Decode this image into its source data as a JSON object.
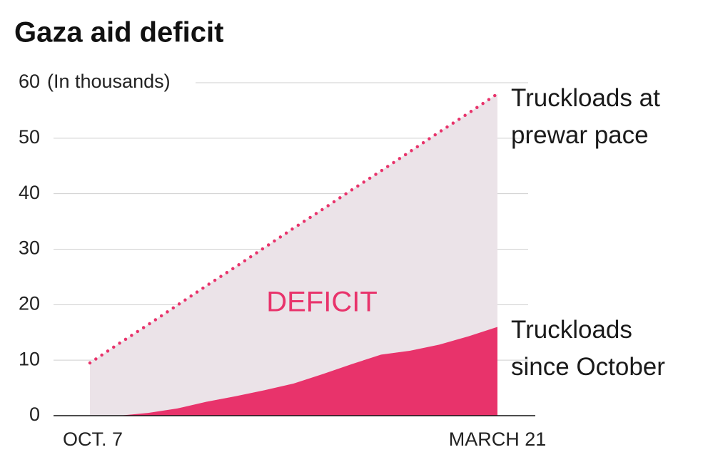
{
  "chart_data": {
    "type": "area",
    "title": "Gaza aid deficit",
    "y_unit": "(In thousands)",
    "annotation": "DEFICIT",
    "categories": [
      "OCT. 7",
      null,
      null,
      null,
      null,
      null,
      null,
      null,
      null,
      null,
      null,
      null,
      null,
      null,
      "MARCH 21"
    ],
    "series": [
      {
        "name": "Truckloads at prewar pace",
        "color": "#e8336b",
        "style": "dotted",
        "values": [
          9.5,
          13.0,
          16.4,
          19.9,
          23.4,
          26.8,
          30.3,
          33.8,
          37.2,
          40.7,
          44.1,
          47.6,
          51.1,
          54.5,
          58
        ]
      },
      {
        "name": "Truckloads since October",
        "color": "#e8336b",
        "style": "filled",
        "values": [
          0,
          0,
          0.5,
          1.3,
          2.5,
          3.5,
          4.6,
          5.8,
          7.5,
          9.3,
          11,
          11.7,
          12.8,
          14.3,
          16
        ]
      }
    ],
    "deficit_color": "#ebe3e8",
    "ylim": [
      0,
      60
    ],
    "yticks": [
      0,
      10,
      20,
      30,
      40,
      50,
      60
    ],
    "grid": true
  }
}
